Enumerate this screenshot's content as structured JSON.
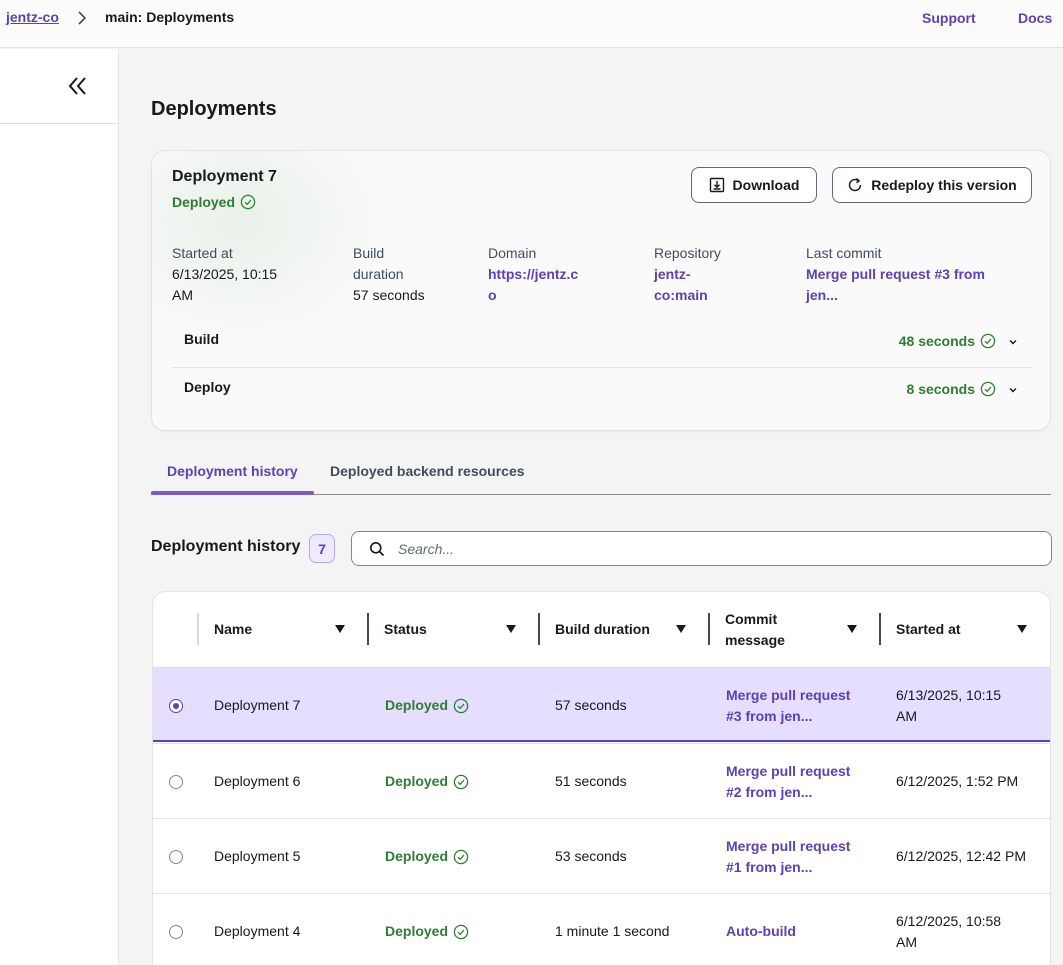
{
  "breadcrumb": {
    "app": "jentz-co",
    "current": "main: Deployments"
  },
  "top_links": {
    "support": "Support",
    "docs": "Docs"
  },
  "page_title": "Deployments",
  "summary": {
    "name": "Deployment 7",
    "status": "Deployed",
    "download_label": "Download",
    "redeploy_label": "Redeploy this version",
    "started_label": "Started at",
    "started_value_1": "6/13/2025, 10:15",
    "started_value_2": "AM",
    "build_label_1": "Build",
    "build_label_2": "duration",
    "build_value": "57 seconds",
    "domain_label": "Domain",
    "domain_value_1": "https://jentz.c",
    "domain_value_2": "o",
    "repo_label": "Repository",
    "repo_value_1": "jentz-",
    "repo_value_2": "co:main",
    "commit_label": "Last commit",
    "commit_value_1": "Merge pull request #3 from",
    "commit_value_2": "jen...",
    "steps": [
      {
        "name": "Build",
        "time": "48 seconds"
      },
      {
        "name": "Deploy",
        "time": "8 seconds"
      }
    ]
  },
  "tabs": {
    "history": "Deployment history",
    "resources": "Deployed backend resources"
  },
  "history": {
    "title": "Deployment history",
    "count": "7",
    "search_placeholder": "Search..."
  },
  "table": {
    "columns": {
      "name": "Name",
      "status": "Status",
      "duration": "Build duration",
      "commit_1": "Commit",
      "commit_2": "message",
      "started": "Started at"
    },
    "rows": [
      {
        "name": "Deployment 7",
        "status": "Deployed",
        "duration": "57 seconds",
        "commit_1": "Merge pull request",
        "commit_2": "#3 from jen...",
        "started_1": "6/13/2025, 10:15",
        "started_2": "AM",
        "selected": true
      },
      {
        "name": "Deployment 6",
        "status": "Deployed",
        "duration": "51 seconds",
        "commit_1": "Merge pull request",
        "commit_2": "#2 from jen...",
        "started_1": "6/12/2025, 1:52 PM",
        "started_2": ""
      },
      {
        "name": "Deployment 5",
        "status": "Deployed",
        "duration": "53 seconds",
        "commit_1": "Merge pull request",
        "commit_2": "#1 from jen...",
        "started_1": "6/12/2025, 12:42 PM",
        "started_2": ""
      },
      {
        "name": "Deployment 4",
        "status": "Deployed",
        "duration": "1 minute 1 second",
        "commit_1": "Auto-build",
        "commit_2": "",
        "started_1": "6/12/2025, 10:58",
        "started_2": "AM"
      }
    ]
  },
  "colors": {
    "accent": "#5f3fb5",
    "success": "#2e7d32",
    "selected_row": "#e5deff"
  }
}
